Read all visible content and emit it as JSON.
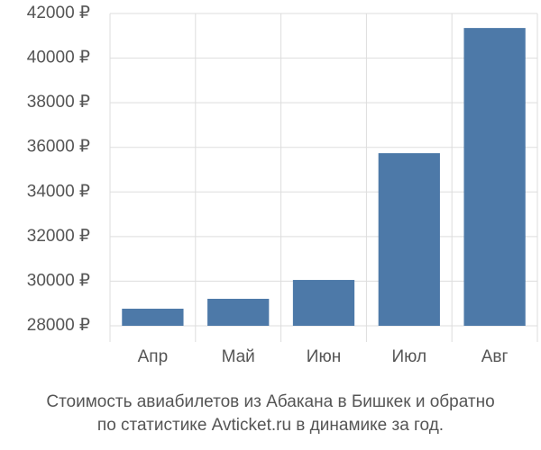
{
  "chart_data": {
    "type": "bar",
    "caption": [
      "Стоимость авиабилетов из Абакана в Бишкек и обратно",
      "по статистике Avticket.ru в динамике за год."
    ],
    "categories": [
      "Апр",
      "Май",
      "Июн",
      "Июл",
      "Авг"
    ],
    "values": [
      28766,
      29210,
      30056,
      35740,
      41350
    ],
    "color": "#4d79a8",
    "ylim": [
      28000,
      42000
    ],
    "yticks": [
      {
        "value": 28000,
        "label": "28000 ₽"
      },
      {
        "value": 30000,
        "label": "30000 ₽"
      },
      {
        "value": 32000,
        "label": "32000 ₽"
      },
      {
        "value": 34000,
        "label": "34000 ₽"
      },
      {
        "value": 36000,
        "label": "36000 ₽"
      },
      {
        "value": 38000,
        "label": "38000 ₽"
      },
      {
        "value": 40000,
        "label": "40000 ₽"
      },
      {
        "value": 42000,
        "label": "42000 ₽"
      }
    ],
    "grid": true
  }
}
